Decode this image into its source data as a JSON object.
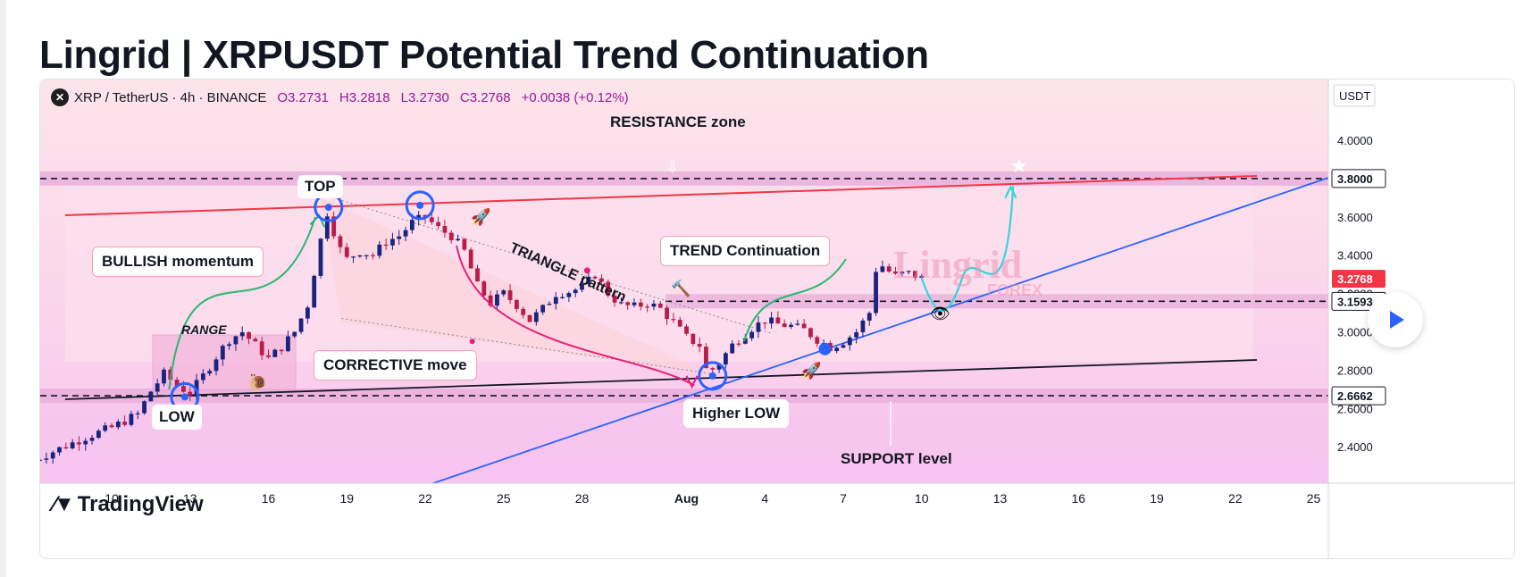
{
  "page": {
    "title": "Lingrid | XRPUSDT Potential Trend Continuation"
  },
  "legend": {
    "symbol": "XRP / TetherUS · 4h · BINANCE",
    "open": "O3.2731",
    "high": "H3.2818",
    "low": "L3.2730",
    "close": "C3.2768",
    "change": "+0.0038 (+0.12%)"
  },
  "branding": {
    "tradingview": "TradingView",
    "watermark_main": "Lingrid",
    "watermark_sub": "FOREX"
  },
  "annotations": {
    "resistance_zone": "RESISTANCE zone",
    "top": "TOP",
    "low": "LOW",
    "range": "RANGE",
    "bullish_momentum": "BULLISH momentum",
    "corrective_move": "CORRECTIVE move",
    "triangle_pattern": "TRIANGLE pattern",
    "trend_continuation": "TREND Continuation",
    "higher_low": "Higher LOW",
    "support_level": "SUPPORT level"
  },
  "chart_data": {
    "type": "candlestick",
    "symbol": "XRPUSDT",
    "exchange": "BINANCE",
    "timeframe": "4h",
    "currency": "USDT",
    "ylim": [
      2.24,
      4.24
    ],
    "y_ticks": [
      "4.0000",
      "3.8000",
      "3.6000",
      "3.4000",
      "3.2000",
      "3.0000",
      "2.8000",
      "2.6000",
      "2.4000"
    ],
    "x_tick_labels": [
      "10",
      "13",
      "16",
      "19",
      "22",
      "25",
      "28",
      "Aug",
      "4",
      "7",
      "10",
      "13",
      "16",
      "19",
      "22",
      "25"
    ],
    "x_tick_days": [
      10,
      13,
      16,
      19,
      22,
      25,
      28,
      32,
      35,
      38,
      41,
      44,
      47,
      50,
      53,
      56
    ],
    "price_labels": [
      {
        "label": "3.8000",
        "value": 3.8,
        "color": "#131722",
        "bg": "#ffffff"
      },
      {
        "label": "3.2768",
        "value": 3.2768,
        "color": "#ffffff",
        "bg": "#f23645"
      },
      {
        "label": "3.1593",
        "value": 3.1593,
        "color": "#131722",
        "bg": "#ffffff"
      },
      {
        "label": "2.6662",
        "value": 2.6662,
        "color": "#131722",
        "bg": "#ffffff"
      }
    ],
    "levels": {
      "resistance": 3.8,
      "mid_support": 3.1593,
      "support": 2.6662
    },
    "price_path": [
      [
        7.0,
        2.33
      ],
      [
        8.0,
        2.39
      ],
      [
        9.0,
        2.45
      ],
      [
        10.0,
        2.5
      ],
      [
        11.0,
        2.57
      ],
      [
        11.5,
        2.69
      ],
      [
        12.0,
        2.78
      ],
      [
        12.5,
        2.72
      ],
      [
        13.0,
        2.68
      ],
      [
        13.5,
        2.77
      ],
      [
        14.0,
        2.87
      ],
      [
        14.5,
        2.96
      ],
      [
        15.0,
        3.0
      ],
      [
        15.5,
        2.93
      ],
      [
        16.0,
        2.86
      ],
      [
        16.5,
        2.92
      ],
      [
        17.0,
        3.0
      ],
      [
        17.5,
        3.14
      ],
      [
        18.0,
        3.48
      ],
      [
        18.3,
        3.65
      ],
      [
        18.6,
        3.46
      ],
      [
        19.0,
        3.38
      ],
      [
        19.5,
        3.42
      ],
      [
        20.0,
        3.4
      ],
      [
        20.5,
        3.47
      ],
      [
        21.0,
        3.5
      ],
      [
        21.5,
        3.57
      ],
      [
        22.0,
        3.6
      ],
      [
        22.5,
        3.54
      ],
      [
        23.0,
        3.5
      ],
      [
        23.5,
        3.42
      ],
      [
        24.0,
        3.24
      ],
      [
        24.5,
        3.15
      ],
      [
        25.0,
        3.2
      ],
      [
        25.5,
        3.14
      ],
      [
        26.0,
        3.06
      ],
      [
        26.5,
        3.12
      ],
      [
        27.0,
        3.2
      ],
      [
        27.5,
        3.21
      ],
      [
        28.0,
        3.23
      ],
      [
        28.5,
        3.3
      ],
      [
        29.0,
        3.2
      ],
      [
        29.5,
        3.14
      ],
      [
        30.0,
        3.13
      ],
      [
        30.5,
        3.15
      ],
      [
        31.0,
        3.12
      ],
      [
        31.5,
        3.05
      ],
      [
        32.0,
        2.97
      ],
      [
        32.5,
        2.93
      ],
      [
        32.8,
        2.78
      ],
      [
        33.2,
        2.83
      ],
      [
        33.8,
        2.94
      ],
      [
        34.5,
        3.02
      ],
      [
        35.0,
        3.06
      ],
      [
        35.5,
        3.04
      ],
      [
        36.0,
        3.03
      ],
      [
        36.5,
        3.01
      ],
      [
        37.0,
        2.96
      ],
      [
        37.5,
        2.92
      ],
      [
        38.0,
        2.95
      ],
      [
        38.5,
        3.0
      ],
      [
        39.0,
        3.1
      ],
      [
        39.3,
        3.37
      ],
      [
        39.6,
        3.33
      ],
      [
        40.0,
        3.29
      ],
      [
        40.4,
        3.31
      ],
      [
        40.8,
        3.29
      ],
      [
        41.0,
        3.28
      ]
    ]
  }
}
